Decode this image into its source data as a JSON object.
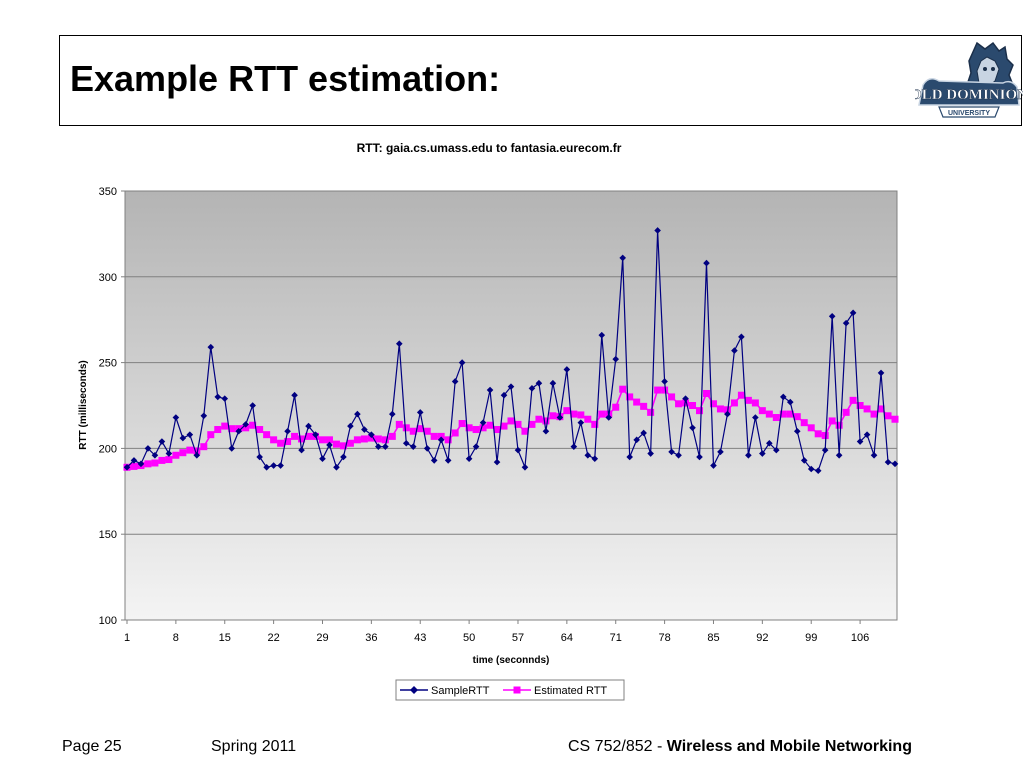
{
  "slide": {
    "title": "Example RTT estimation:",
    "logo_text": "OLD DOMINION",
    "logo_subtext": "UNIVERSITY"
  },
  "footer": {
    "page": "Page 25",
    "term": "Spring 2011",
    "course": "CS 752/852 - ",
    "course_bold": "Wireless and Mobile Networking"
  },
  "chart_data": {
    "type": "line",
    "title": "RTT: gaia.cs.umass.edu to fantasia.eurecom.fr",
    "xlabel": "time (seconnds)",
    "ylabel": "RTT (milliseconds)",
    "ylim": [
      100,
      350
    ],
    "xlim": [
      1,
      111
    ],
    "yticks": [
      "100",
      "150",
      "200",
      "250",
      "300",
      "350"
    ],
    "xticks": [
      "1",
      "8",
      "15",
      "22",
      "29",
      "36",
      "43",
      "50",
      "57",
      "64",
      "71",
      "78",
      "85",
      "92",
      "99",
      "106"
    ],
    "grid": "horizontal",
    "legend_position": "bottom",
    "x": [
      1,
      2,
      3,
      4,
      5,
      6,
      7,
      8,
      9,
      10,
      11,
      12,
      13,
      14,
      15,
      16,
      17,
      18,
      19,
      20,
      21,
      22,
      23,
      24,
      25,
      26,
      27,
      28,
      29,
      30,
      31,
      32,
      33,
      34,
      35,
      36,
      37,
      38,
      39,
      40,
      41,
      42,
      43,
      44,
      45,
      46,
      47,
      48,
      49,
      50,
      51,
      52,
      53,
      54,
      55,
      56,
      57,
      58,
      59,
      60,
      61,
      62,
      63,
      64,
      65,
      66,
      67,
      68,
      69,
      70,
      71,
      72,
      73,
      74,
      75,
      76,
      77,
      78,
      79,
      80,
      81,
      82,
      83,
      84,
      85,
      86,
      87,
      88,
      89,
      90,
      91,
      92,
      93,
      94,
      95,
      96,
      97,
      98,
      99,
      100,
      101,
      102,
      103,
      104,
      105,
      106,
      107,
      108,
      109,
      110,
      111
    ],
    "series": [
      {
        "name": "SampleRTT",
        "color": "#000080",
        "marker": "diamond",
        "values": [
          189,
          193,
          191,
          200,
          196,
          204,
          197,
          218,
          206,
          208,
          196,
          219,
          259,
          230,
          229,
          200,
          210,
          214,
          225,
          195,
          189,
          190,
          190,
          210,
          231,
          199,
          213,
          208,
          194,
          202,
          189,
          195,
          213,
          220,
          211,
          208,
          201,
          201,
          220,
          261,
          203,
          201,
          221,
          200,
          193,
          205,
          193,
          239,
          250,
          194,
          201,
          215,
          234,
          192,
          231,
          236,
          199,
          189,
          235,
          238,
          210,
          238,
          218,
          246,
          201,
          215,
          196,
          194,
          266,
          218,
          252,
          311,
          195,
          205,
          209,
          197,
          327,
          239,
          198,
          196,
          229,
          212,
          195,
          308,
          190,
          198,
          220,
          257,
          265,
          196,
          218,
          197,
          203,
          199,
          230,
          227,
          210,
          193,
          188,
          187,
          199,
          277,
          196,
          273,
          279,
          204,
          208,
          196,
          244,
          192,
          191
        ]
      },
      {
        "name": "Estimated RTT",
        "color": "#ff00ff",
        "marker": "square",
        "values": [
          189,
          189.5,
          190,
          191,
          191.5,
          193,
          193.5,
          196,
          197.5,
          199,
          198.5,
          201,
          208,
          211,
          213,
          211.5,
          211.5,
          212,
          213.5,
          211,
          208,
          205,
          203,
          204,
          207,
          205.5,
          207,
          207,
          205,
          205,
          202.5,
          201.5,
          203,
          205,
          205.5,
          206,
          205.5,
          205,
          207,
          214,
          212,
          210,
          211.5,
          210,
          207,
          207,
          205,
          209,
          214.5,
          212,
          211,
          212,
          213.5,
          211,
          213,
          216,
          214,
          210,
          214,
          217,
          216,
          219,
          218.5,
          222,
          220,
          219.5,
          217,
          214,
          220,
          220,
          224,
          234.5,
          230,
          227,
          224.5,
          221,
          234,
          234,
          230,
          226,
          226.5,
          225,
          222,
          232,
          226,
          223,
          222.5,
          226.5,
          231,
          228,
          226.5,
          222,
          220,
          218,
          220,
          220,
          218.5,
          215,
          212,
          208.5,
          207.5,
          216,
          213.5,
          221,
          228,
          225,
          223,
          220,
          223,
          219,
          217
        ]
      }
    ]
  }
}
